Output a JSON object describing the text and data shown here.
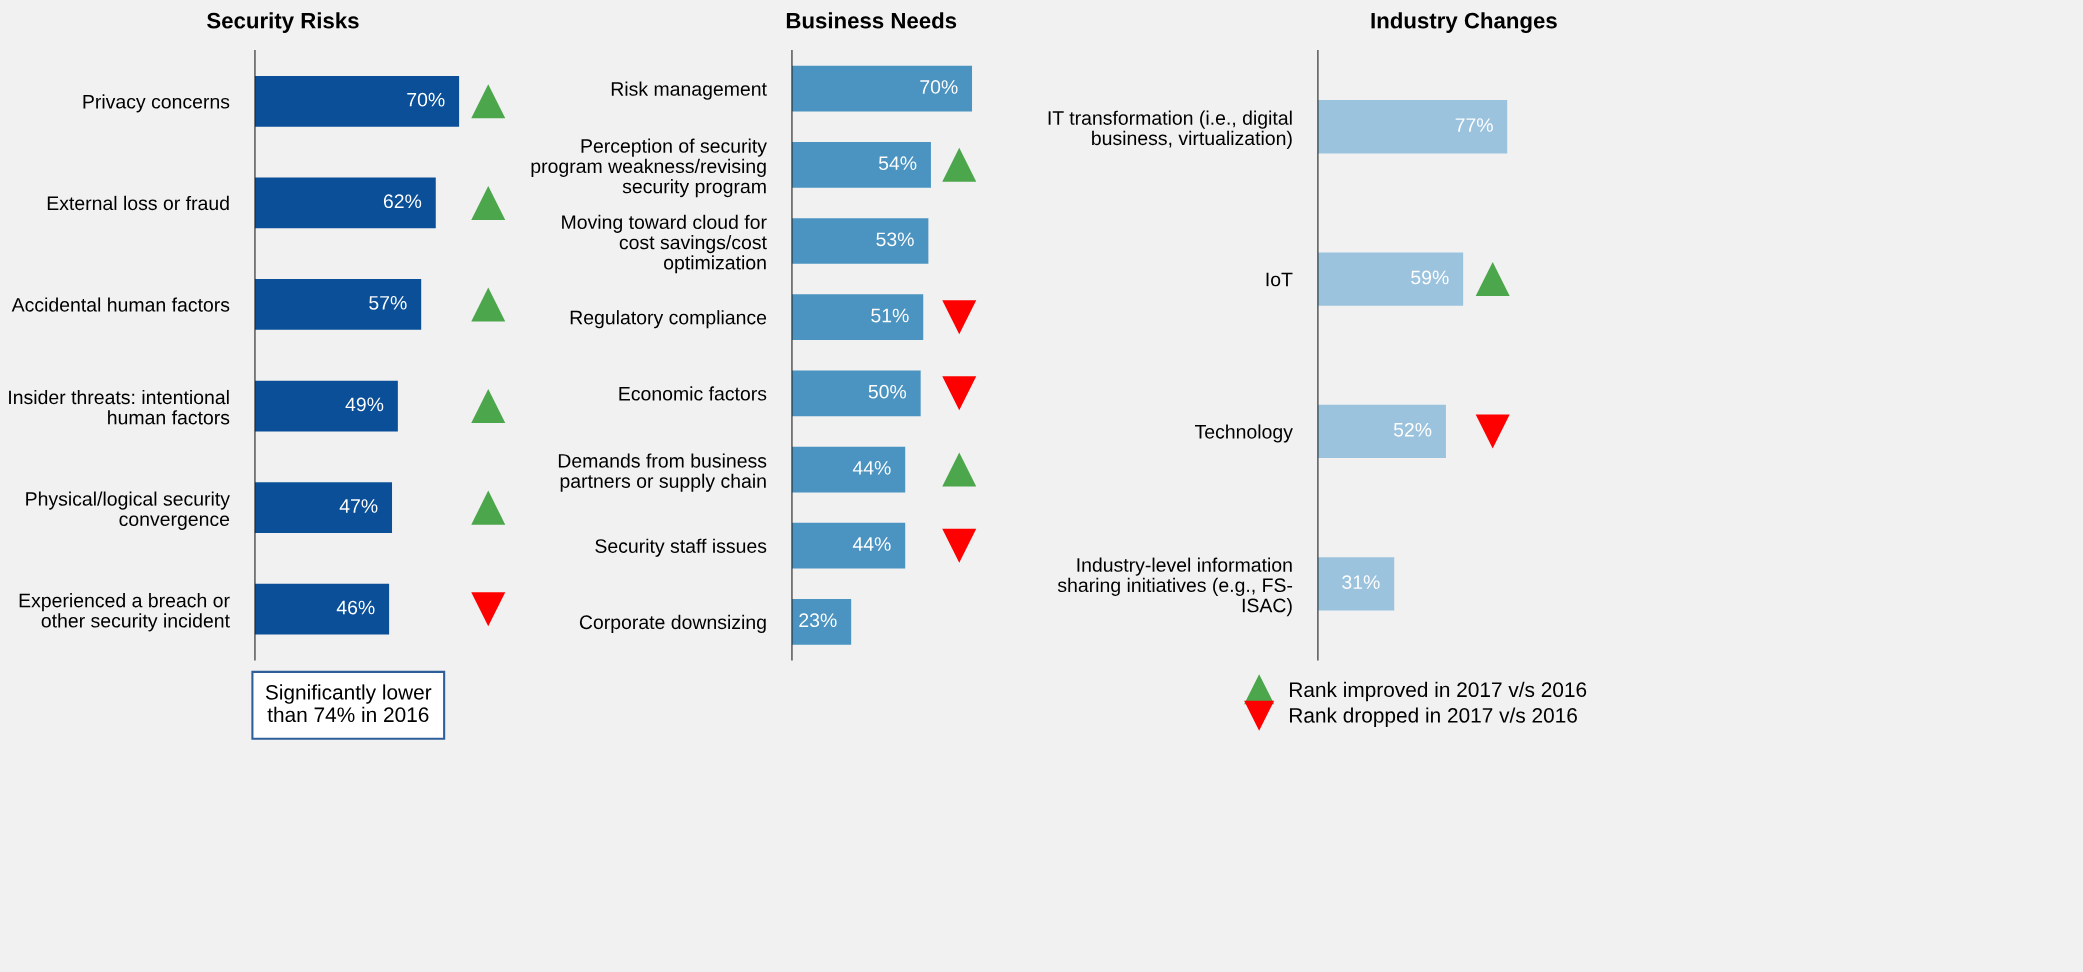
{
  "chart_data": [
    {
      "type": "bar",
      "orientation": "horizontal",
      "title": "Security Risks",
      "categories": [
        "Privacy concerns",
        "External loss or fraud",
        "Accidental human factors",
        "Insider threats: intentional\nhuman factors",
        "Physical/logical security\nconvergence",
        "Experienced a breach or\nother security incident"
      ],
      "series": [
        {
          "color": "#0a4f98",
          "values": [
            70,
            62,
            57,
            49,
            47,
            46
          ],
          "value_labels": [
            "70%",
            "62%",
            "57%",
            "49%",
            "47%",
            "46%"
          ]
        },
        {
          "type": "scatter",
          "marker": "triangle",
          "color": "#4ca64c",
          "values": [
            80,
            80,
            80,
            80,
            80,
            null
          ]
        },
        {
          "type": "scatter",
          "marker": "triangle_down",
          "color": "#ff0000",
          "values": [
            null,
            null,
            null,
            null,
            null,
            80
          ]
        }
      ],
      "tick_labels": "y",
      "grid": false,
      "legend": false,
      "annotations": [
        "Significantly lower\nthan 74% in 2016"
      ]
    },
    {
      "type": "bar",
      "orientation": "horizontal",
      "title": "Business Needs",
      "categories": [
        "Risk management",
        "Perception of security\nprogram weakness/revising\nsecurity program",
        "Moving toward cloud for\ncost savings/cost\noptimization",
        "Regulatory compliance",
        "Economic factors",
        "Demands from business\npartners or supply chain",
        "Security staff issues",
        "Corporate downsizing"
      ],
      "series": [
        {
          "color": "#4b93c0",
          "values": [
            70,
            54,
            53,
            51,
            50,
            44,
            44,
            23
          ],
          "value_labels": [
            "70%",
            "54%",
            "53%",
            "51%",
            "50%",
            "44%",
            "44%",
            "23%"
          ]
        },
        {
          "type": "scatter",
          "marker": "triangle",
          "color": "#4ca64c",
          "values": [
            null,
            65,
            null,
            null,
            null,
            65,
            null,
            null
          ]
        },
        {
          "type": "scatter",
          "marker": "triangle_down",
          "color": "#ff0000",
          "values": [
            null,
            null,
            null,
            65,
            65,
            null,
            65,
            null
          ]
        }
      ],
      "tick_labels": "y",
      "grid": false,
      "legend": false
    },
    {
      "type": "bar",
      "orientation": "horizontal",
      "title": "Industry Changes",
      "categories": [
        "IT transformation (i.e., digital\nbusiness, virtualization)",
        "IoT",
        "Technology",
        "Industry-level information\nsharing initiatives (e.g., FS-\nISAC)"
      ],
      "series": [
        {
          "color": "#9cc3de",
          "values": [
            77,
            59,
            52,
            31
          ],
          "value_labels": [
            "77%",
            "59%",
            "52%",
            "31%"
          ]
        },
        {
          "type": "scatter",
          "marker": "triangle",
          "color": "#4ca64c",
          "name": "Rank improved in 2017 v/s 2016",
          "values": [
            null,
            71,
            null,
            null
          ]
        },
        {
          "type": "scatter",
          "marker": "triangle_down",
          "color": "#ff0000",
          "name": "Rank dropped in 2017 v/s 2016",
          "values": [
            null,
            null,
            71,
            null
          ]
        }
      ],
      "tick_labels": "y",
      "grid": false,
      "legend": "bottom"
    }
  ]
}
